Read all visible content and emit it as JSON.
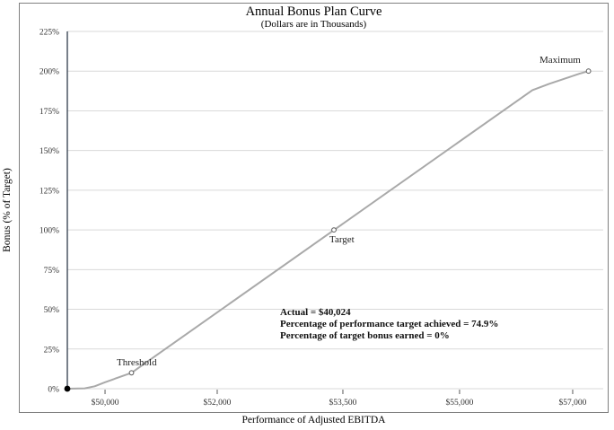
{
  "chart_data": {
    "type": "line",
    "title": "Annual Bonus Plan Curve",
    "subtitle": "(Dollars are in Thousands)",
    "xlabel": "Performance of Adjusted EBITDA",
    "ylabel": "Bonus (% of Target)",
    "xlim": [
      49440,
      57460
    ],
    "ylim": [
      0,
      225
    ],
    "grid": "horizontal-only",
    "legend": "none",
    "y_ticks": [
      0,
      25,
      50,
      75,
      100,
      125,
      150,
      175,
      200,
      225
    ],
    "y_tick_labels": [
      "0%",
      "25%",
      "50%",
      "75%",
      "100%",
      "125%",
      "150%",
      "175%",
      "200%",
      "225%"
    ],
    "x_tick_labels": [
      "$50,000",
      "$52,000",
      "$53,500",
      "$55,000",
      "$57,000"
    ],
    "curve_points": [
      [
        49440,
        0
      ],
      [
        49700,
        0.2
      ],
      [
        49850,
        1.5
      ],
      [
        50000,
        4
      ],
      [
        50200,
        7
      ],
      [
        50400,
        10
      ],
      [
        56400,
        188
      ],
      [
        56650,
        192
      ],
      [
        56900,
        195.5
      ],
      [
        57100,
        198.3
      ],
      [
        57240,
        200
      ]
    ],
    "origin_point": {
      "x": 49440,
      "y": 0
    },
    "key_points": [
      {
        "label": "Threshold",
        "x": 50400,
        "y": 10
      },
      {
        "label": "Target",
        "x": 53430,
        "y": 100
      },
      {
        "label": "Maximum",
        "x": 57240,
        "y": 200
      }
    ],
    "annotation_lines": [
      "Actual = $40,024",
      "Percentage of performance target achieved = 74.9%",
      "Percentage of target bonus earned = 0%"
    ],
    "colors": {
      "curve": "#a9a9a9",
      "grid": "#d9d9d9",
      "axis": "#3f4a59",
      "frame": "#808080",
      "marker_stroke": "#595959",
      "origin_dot": "#000000"
    }
  }
}
